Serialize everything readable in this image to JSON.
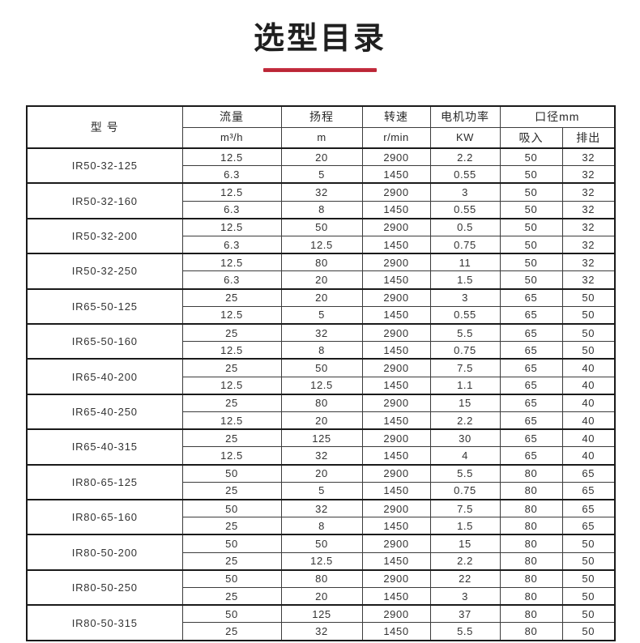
{
  "page": {
    "title": "选型目录"
  },
  "colors": {
    "accent_red": "#c22c3d",
    "border_dark": "#1a1a1a",
    "border_inner": "#3c3c3c",
    "text": "#2d2d2d"
  },
  "table": {
    "header": {
      "model": "型  号",
      "flow": "流量",
      "flow_unit": "m³/h",
      "head": "扬程",
      "head_unit": "m",
      "speed": "转速",
      "speed_unit": "r/min",
      "power": "电机功率",
      "power_unit": "KW",
      "diameter": "口径mm",
      "suction": "吸入",
      "discharge": "排出"
    },
    "models": [
      {
        "model": "IR50-32-125",
        "rows": [
          [
            "12.5",
            "20",
            "2900",
            "2.2",
            "50",
            "32"
          ],
          [
            "6.3",
            "5",
            "1450",
            "0.55",
            "50",
            "32"
          ]
        ]
      },
      {
        "model": "IR50-32-160",
        "rows": [
          [
            "12.5",
            "32",
            "2900",
            "3",
            "50",
            "32"
          ],
          [
            "6.3",
            "8",
            "1450",
            "0.55",
            "50",
            "32"
          ]
        ]
      },
      {
        "model": "IR50-32-200",
        "rows": [
          [
            "12.5",
            "50",
            "2900",
            "0.5",
            "50",
            "32"
          ],
          [
            "6.3",
            "12.5",
            "1450",
            "0.75",
            "50",
            "32"
          ]
        ]
      },
      {
        "model": "IR50-32-250",
        "rows": [
          [
            "12.5",
            "80",
            "2900",
            "11",
            "50",
            "32"
          ],
          [
            "6.3",
            "20",
            "1450",
            "1.5",
            "50",
            "32"
          ]
        ]
      },
      {
        "model": "IR65-50-125",
        "rows": [
          [
            "25",
            "20",
            "2900",
            "3",
            "65",
            "50"
          ],
          [
            "12.5",
            "5",
            "1450",
            "0.55",
            "65",
            "50"
          ]
        ]
      },
      {
        "model": "IR65-50-160",
        "rows": [
          [
            "25",
            "32",
            "2900",
            "5.5",
            "65",
            "50"
          ],
          [
            "12.5",
            "8",
            "1450",
            "0.75",
            "65",
            "50"
          ]
        ]
      },
      {
        "model": "IR65-40-200",
        "rows": [
          [
            "25",
            "50",
            "2900",
            "7.5",
            "65",
            "40"
          ],
          [
            "12.5",
            "12.5",
            "1450",
            "1.1",
            "65",
            "40"
          ]
        ]
      },
      {
        "model": "IR65-40-250",
        "rows": [
          [
            "25",
            "80",
            "2900",
            "15",
            "65",
            "40"
          ],
          [
            "12.5",
            "20",
            "1450",
            "2.2",
            "65",
            "40"
          ]
        ]
      },
      {
        "model": "IR65-40-315",
        "rows": [
          [
            "25",
            "125",
            "2900",
            "30",
            "65",
            "40"
          ],
          [
            "12.5",
            "32",
            "1450",
            "4",
            "65",
            "40"
          ]
        ]
      },
      {
        "model": "IR80-65-125",
        "rows": [
          [
            "50",
            "20",
            "2900",
            "5.5",
            "80",
            "65"
          ],
          [
            "25",
            "5",
            "1450",
            "0.75",
            "80",
            "65"
          ]
        ]
      },
      {
        "model": "IR80-65-160",
        "rows": [
          [
            "50",
            "32",
            "2900",
            "7.5",
            "80",
            "65"
          ],
          [
            "25",
            "8",
            "1450",
            "1.5",
            "80",
            "65"
          ]
        ]
      },
      {
        "model": "IR80-50-200",
        "rows": [
          [
            "50",
            "50",
            "2900",
            "15",
            "80",
            "50"
          ],
          [
            "25",
            "12.5",
            "1450",
            "2.2",
            "80",
            "50"
          ]
        ]
      },
      {
        "model": "IR80-50-250",
        "rows": [
          [
            "50",
            "80",
            "2900",
            "22",
            "80",
            "50"
          ],
          [
            "25",
            "20",
            "1450",
            "3",
            "80",
            "50"
          ]
        ]
      },
      {
        "model": "IR80-50-315",
        "rows": [
          [
            "50",
            "125",
            "2900",
            "37",
            "80",
            "50"
          ],
          [
            "25",
            "32",
            "1450",
            "5.5",
            "80",
            "50"
          ]
        ]
      }
    ]
  }
}
